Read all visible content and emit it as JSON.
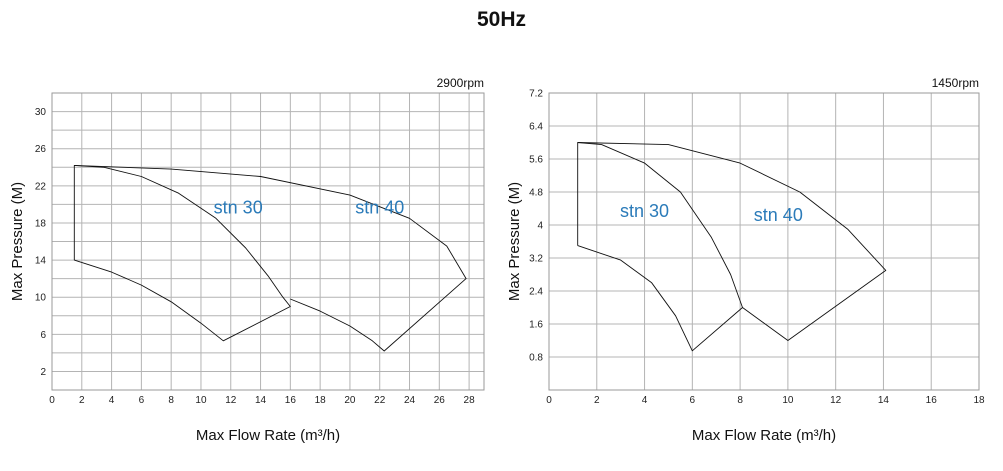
{
  "title": "50Hz",
  "chart_data": [
    {
      "type": "area",
      "speed_label": "2900rpm",
      "xlabel": "Max Flow Rate (m³/h)",
      "ylabel": "Max Pressure (M)",
      "xlim": [
        0,
        29
      ],
      "ylim": [
        0,
        32
      ],
      "x_ticks": [
        0,
        2,
        4,
        6,
        8,
        10,
        12,
        14,
        16,
        18,
        20,
        22,
        24,
        26,
        28
      ],
      "y_ticks": [
        2,
        6,
        10,
        14,
        18,
        22,
        26,
        30
      ],
      "y_grid": [
        2,
        4,
        6,
        8,
        10,
        12,
        14,
        16,
        18,
        20,
        22,
        24,
        26,
        28,
        30
      ],
      "grid": true,
      "regions": [
        {
          "name": "stn 30",
          "label_at": [
            12.5,
            19
          ],
          "outline": [
            [
              1.5,
              14
            ],
            [
              1.5,
              24.2
            ],
            [
              3.5,
              24.0
            ],
            [
              6,
              23.0
            ],
            [
              8.5,
              21.2
            ],
            [
              11,
              18.5
            ],
            [
              13,
              15.3
            ],
            [
              14.5,
              12.3
            ],
            [
              15.5,
              10.0
            ],
            [
              16.0,
              9.0
            ],
            [
              11.5,
              5.3
            ],
            [
              10,
              7.2
            ],
            [
              8,
              9.5
            ],
            [
              6,
              11.3
            ],
            [
              4,
              12.7
            ],
            [
              1.5,
              14
            ]
          ]
        },
        {
          "name": "stn 40",
          "label_at": [
            22,
            19
          ],
          "outline": [
            [
              1.5,
              24.2
            ],
            [
              8,
              23.8
            ],
            [
              14,
              23.0
            ],
            [
              20,
              21.0
            ],
            [
              24,
              18.5
            ],
            [
              26.5,
              15.5
            ],
            [
              27.8,
              12.0
            ],
            [
              22.3,
              4.2
            ],
            [
              21.5,
              5.3
            ],
            [
              20,
              6.9
            ],
            [
              18,
              8.5
            ],
            [
              16.0,
              9.8
            ]
          ]
        }
      ]
    },
    {
      "type": "area",
      "speed_label": "1450rpm",
      "xlabel": "Max Flow Rate (m³/h)",
      "ylabel": "Max Pressure (M)",
      "xlim": [
        0,
        18
      ],
      "ylim": [
        0,
        7.2
      ],
      "x_ticks": [
        0,
        2,
        4,
        6,
        8,
        10,
        12,
        14,
        16,
        18
      ],
      "y_ticks": [
        0.8,
        1.6,
        2.4,
        3.2,
        4.0,
        4.8,
        5.6,
        6.4,
        7.2
      ],
      "grid": true,
      "regions": [
        {
          "name": "stn 30",
          "label_at": [
            4.0,
            4.2
          ],
          "outline": [
            [
              1.2,
              3.5
            ],
            [
              1.2,
              6.0
            ],
            [
              2.2,
              5.95
            ],
            [
              4,
              5.5
            ],
            [
              5.5,
              4.8
            ],
            [
              6.8,
              3.7
            ],
            [
              7.6,
              2.8
            ],
            [
              8.1,
              2.0
            ],
            [
              6.0,
              0.95
            ],
            [
              5.3,
              1.8
            ],
            [
              4.3,
              2.6
            ],
            [
              3,
              3.15
            ],
            [
              1.2,
              3.5
            ]
          ]
        },
        {
          "name": "stn 40",
          "label_at": [
            9.6,
            4.1
          ],
          "outline": [
            [
              1.2,
              6.0
            ],
            [
              5,
              5.95
            ],
            [
              8,
              5.5
            ],
            [
              10.5,
              4.8
            ],
            [
              12.5,
              3.9
            ],
            [
              14.1,
              2.9
            ],
            [
              10,
              1.2
            ],
            [
              8.1,
              2.0
            ]
          ]
        }
      ]
    }
  ]
}
